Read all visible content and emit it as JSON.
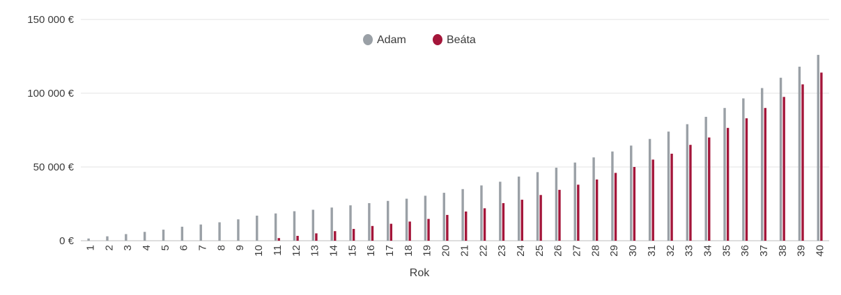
{
  "chart_data": {
    "type": "bar",
    "title": "",
    "xlabel": "Rok",
    "ylabel": "",
    "ylim": [
      0,
      150000
    ],
    "yticks": [
      0,
      50000,
      100000,
      150000
    ],
    "ytick_labels": [
      "0 €",
      "50 000 €",
      "100 000 €",
      "150 000 €"
    ],
    "grid": true,
    "legend_position": "top-center",
    "categories": [
      "1",
      "2",
      "3",
      "4",
      "5",
      "6",
      "7",
      "8",
      "9",
      "10",
      "11",
      "12",
      "13",
      "14",
      "15",
      "16",
      "17",
      "18",
      "19",
      "20",
      "21",
      "22",
      "23",
      "24",
      "25",
      "26",
      "27",
      "28",
      "29",
      "30",
      "31",
      "32",
      "33",
      "34",
      "35",
      "36",
      "37",
      "38",
      "39",
      "40"
    ],
    "series": [
      {
        "name": "Adam",
        "color": "#9aa0a6",
        "values": [
          1500,
          3000,
          4500,
          6000,
          7500,
          9500,
          11000,
          12500,
          14500,
          17000,
          18500,
          20000,
          21000,
          22500,
          24000,
          25500,
          27000,
          28500,
          30500,
          32500,
          35000,
          37500,
          40000,
          43500,
          46500,
          49500,
          53000,
          56500,
          60500,
          64500,
          69000,
          74000,
          79000,
          84000,
          90000,
          96500,
          103500,
          110500,
          118000,
          126000
        ]
      },
      {
        "name": "Beáta",
        "color": "#a4163a",
        "values": [
          0,
          0,
          0,
          0,
          0,
          0,
          0,
          0,
          0,
          0,
          1800,
          3300,
          5000,
          6500,
          8000,
          10000,
          11500,
          13000,
          14800,
          17500,
          19800,
          22000,
          25500,
          27800,
          31000,
          34500,
          38000,
          41500,
          46000,
          50000,
          55000,
          59000,
          65000,
          70000,
          76500,
          83000,
          90000,
          97500,
          106000,
          114000
        ]
      }
    ]
  }
}
